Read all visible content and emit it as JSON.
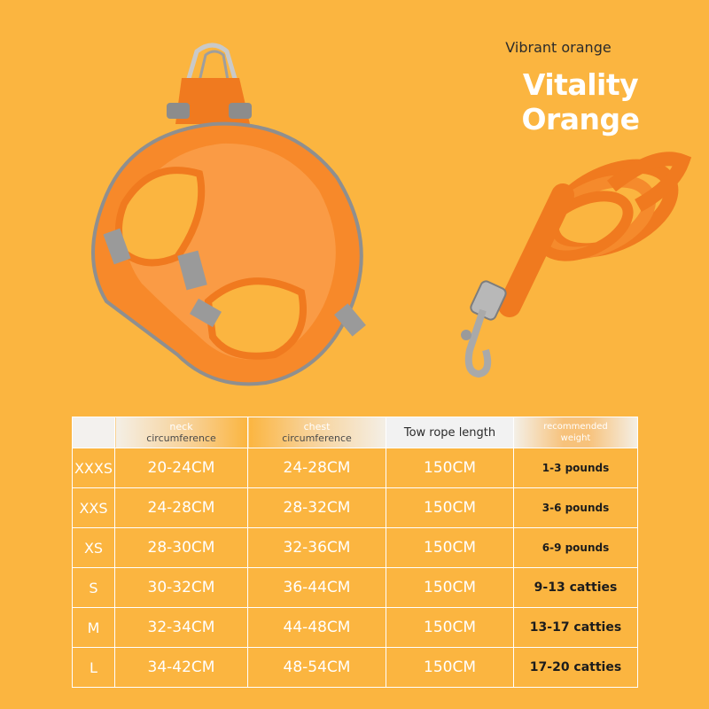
{
  "header": {
    "subtitle": "Vibrant orange",
    "title": "Vitality Orange"
  },
  "colors": {
    "background": "#fbb540",
    "harness": "#f7892a",
    "reflective_trim": "#9a9a9a",
    "table_border": "#ffffff"
  },
  "table": {
    "headers": {
      "neck_line1": "neck",
      "neck_line2": "circumference",
      "chest_line1": "chest",
      "chest_line2": "circumference",
      "rope": "Tow rope length",
      "weight_line1": "recommended",
      "weight_line2": "weight"
    },
    "rows": [
      {
        "size": "XXXS",
        "neck": "20-24CM",
        "chest": "24-28CM",
        "rope": "150CM",
        "weight": "1-3 pounds"
      },
      {
        "size": "XXS",
        "neck": "24-28CM",
        "chest": "28-32CM",
        "rope": "150CM",
        "weight": "3-6 pounds"
      },
      {
        "size": "XS",
        "neck": "28-30CM",
        "chest": "32-36CM",
        "rope": "150CM",
        "weight": "6-9 pounds"
      },
      {
        "size": "S",
        "neck": "30-32CM",
        "chest": "36-44CM",
        "rope": "150CM",
        "weight": "9-13 catties"
      },
      {
        "size": "M",
        "neck": "32-34CM",
        "chest": "44-48CM",
        "rope": "150CM",
        "weight": "13-17 catties"
      },
      {
        "size": "L",
        "neck": "34-42CM",
        "chest": "48-54CM",
        "rope": "150CM",
        "weight": "17-20 catties"
      }
    ]
  }
}
